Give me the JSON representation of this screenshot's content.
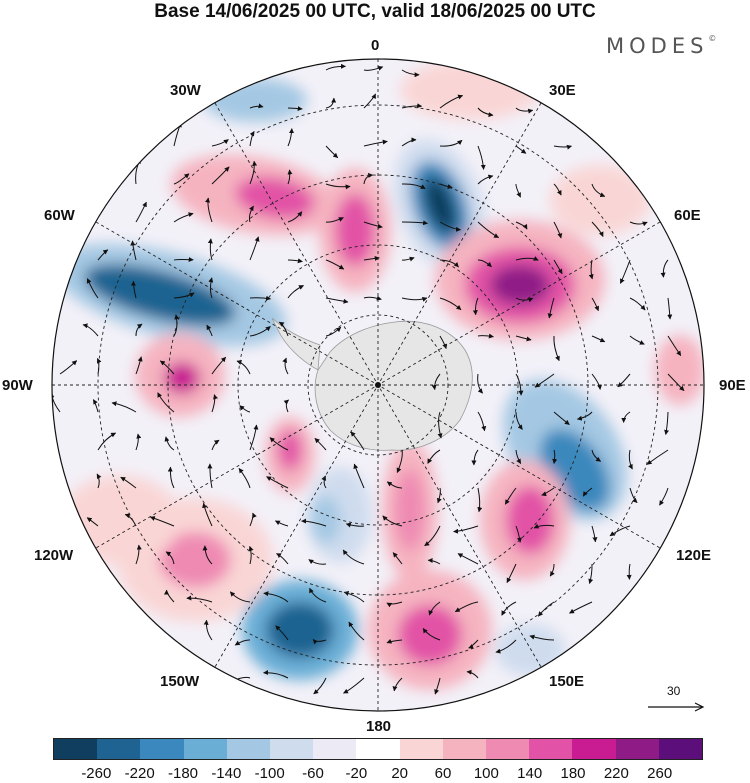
{
  "title": "Base 14/06/2025 00 UTC, valid 18/06/2025 00 UTC",
  "brand": "MODES",
  "brand_mark": "©",
  "map": {
    "projection": "south-polar-stereographic",
    "longitude_labels": [
      "0",
      "30E",
      "60E",
      "90E",
      "120E",
      "150E",
      "180",
      "150W",
      "120W",
      "90W",
      "60W",
      "30W"
    ],
    "reference_vector": "30"
  },
  "colorbar": {
    "colors": [
      "#103e5e",
      "#1e6391",
      "#3a88bd",
      "#6aaed6",
      "#a4c8e3",
      "#cfdcee",
      "#ecebf5",
      "#ffffff",
      "#f9d5d5",
      "#f5b3c0",
      "#ef8ab3",
      "#e252a6",
      "#c91c93",
      "#8f1b87",
      "#5c0f7a"
    ],
    "tick_labels": [
      "-260",
      "-220",
      "-180",
      "-140",
      "-100",
      "-60",
      "-20",
      "20",
      "60",
      "100",
      "140",
      "180",
      "220",
      "260"
    ]
  }
}
